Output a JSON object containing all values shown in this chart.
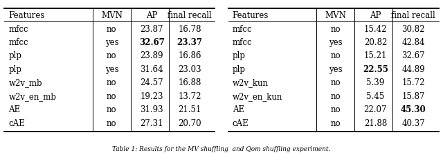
{
  "table1": {
    "headers": [
      "Features",
      "MVN",
      "AP",
      "final recall"
    ],
    "rows": [
      [
        "mfcc",
        "no",
        "23.87",
        "16.78",
        false,
        false
      ],
      [
        "mfcc",
        "yes",
        "32.67",
        "23.37",
        true,
        true
      ],
      [
        "plp",
        "no",
        "23.89",
        "16.86",
        false,
        false
      ],
      [
        "plp",
        "yes",
        "31.64",
        "23.03",
        false,
        false
      ],
      [
        "w2v_mb",
        "no",
        "24.57",
        "16.88",
        false,
        false
      ],
      [
        "w2v_en_mb",
        "no",
        "19.23",
        "13.72",
        false,
        false
      ],
      [
        "AE",
        "no",
        "31.93",
        "21.51",
        false,
        false
      ],
      [
        "cAE",
        "no",
        "27.31",
        "20.70",
        false,
        false
      ]
    ]
  },
  "table2": {
    "headers": [
      "Features",
      "MVN",
      "AP",
      "final recall"
    ],
    "rows": [
      [
        "mfcc",
        "no",
        "15.42",
        "30.82",
        false,
        false
      ],
      [
        "mfcc",
        "yes",
        "20.82",
        "42.84",
        false,
        false
      ],
      [
        "plp",
        "no",
        "15.21",
        "32.67",
        false,
        false
      ],
      [
        "plp",
        "yes",
        "22.55",
        "44.89",
        true,
        false
      ],
      [
        "w2v_kun",
        "no",
        "5.39",
        "15.72",
        false,
        false
      ],
      [
        "w2v_en_kun",
        "no",
        "5.45",
        "15.87",
        false,
        false
      ],
      [
        "AE",
        "no",
        "22.07",
        "45.30",
        false,
        true
      ],
      [
        "cAE",
        "no",
        "21.88",
        "40.37",
        false,
        false
      ]
    ]
  },
  "caption": "Table 1: Results for the MV shuffling  and Qom shuffling experiment.",
  "bg": "#ffffff",
  "fontsize": 8.5
}
